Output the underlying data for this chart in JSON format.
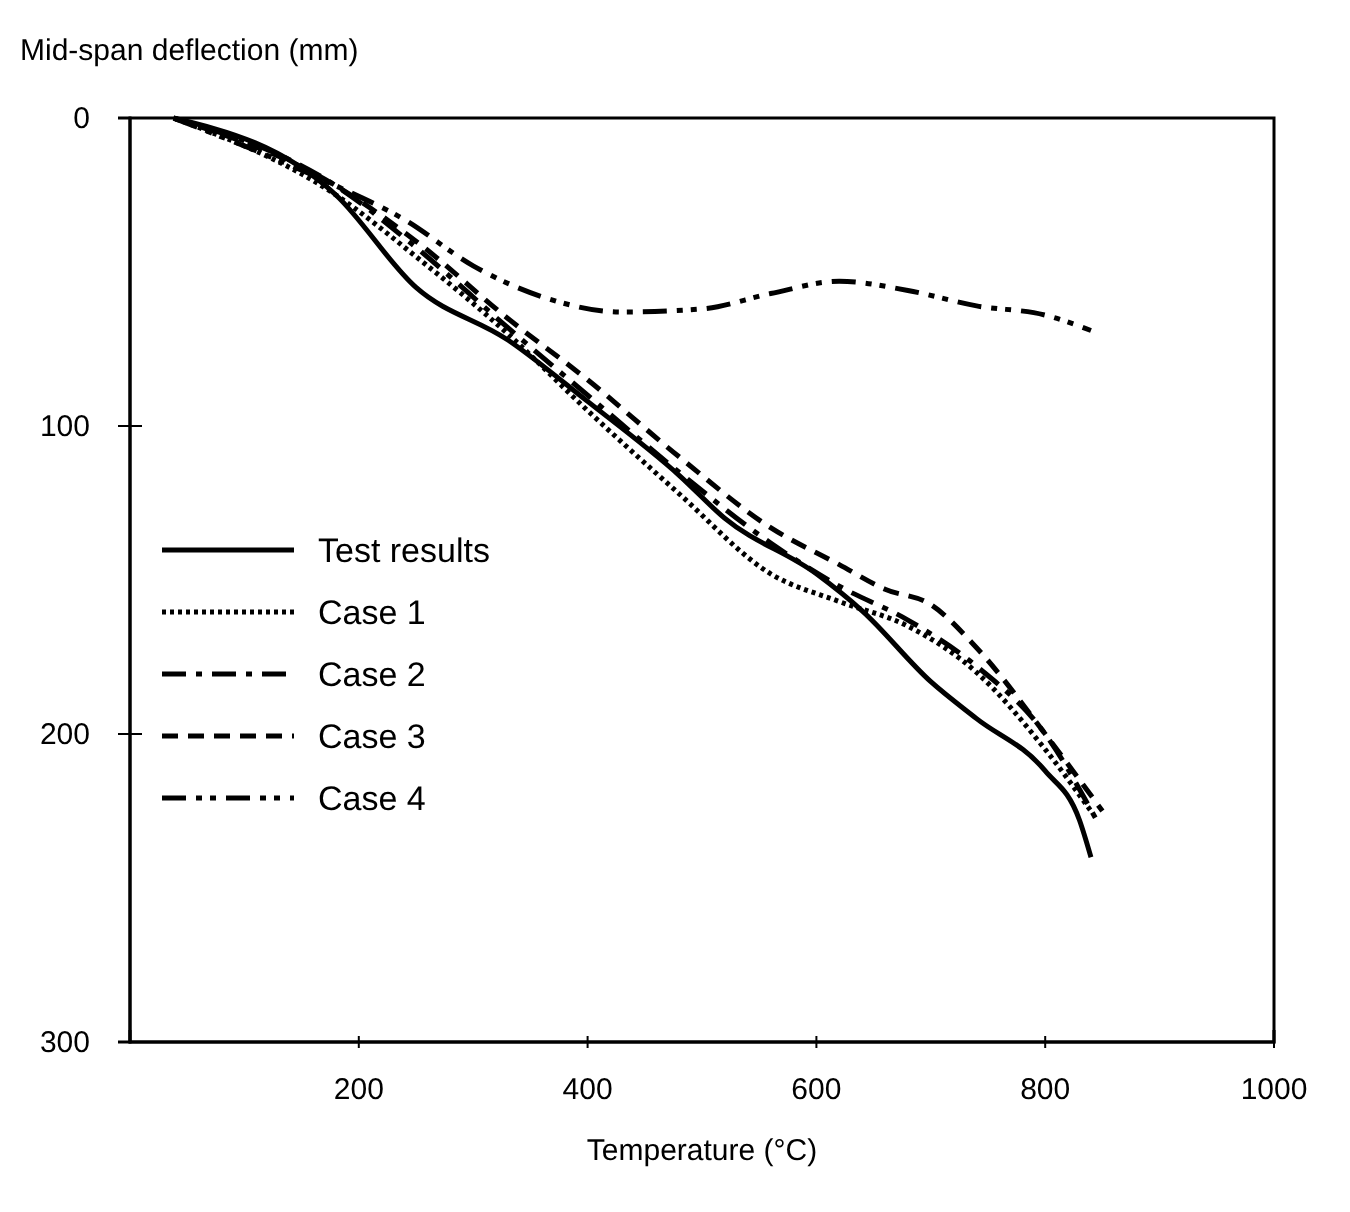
{
  "chart_data": {
    "type": "line",
    "xlabel": "Temperature (°C)",
    "ylabel": "Mid-span deflection (mm)",
    "xlim": [
      0,
      1000
    ],
    "xticks": [
      200,
      400,
      600,
      800,
      1000
    ],
    "ylim": [
      300,
      0
    ],
    "yticks": [
      0,
      100,
      200,
      300
    ],
    "grid": false,
    "legend": "left",
    "marker": "none",
    "series": [
      {
        "name": "Test results",
        "color": "#000000",
        "line_style": "solid",
        "x": [
          38,
          180,
          250,
          330,
          400,
          480,
          520,
          600,
          640,
          700,
          740,
          800,
          830,
          840
        ],
        "values": [
          0,
          25,
          55,
          72,
          92,
          116,
          130,
          148,
          160,
          183,
          195,
          212,
          228,
          240
        ]
      },
      {
        "name": "Case 1",
        "color": "#000000",
        "line_style": "dotted",
        "x": [
          38,
          180,
          250,
          330,
          400,
          480,
          560,
          620,
          680,
          740,
          800,
          840
        ],
        "values": [
          0,
          25,
          45,
          70,
          95,
          122,
          148,
          157,
          165,
          180,
          205,
          225
        ]
      },
      {
        "name": "Case 2",
        "color": "#000000",
        "line_style": "dashdot",
        "x": [
          38,
          180,
          250,
          330,
          400,
          480,
          560,
          620,
          680,
          740,
          800,
          845
        ],
        "values": [
          0,
          22,
          42,
          68,
          90,
          115,
          138,
          152,
          163,
          178,
          200,
          228
        ]
      },
      {
        "name": "Case 3",
        "color": "#000000",
        "line_style": "dashed",
        "x": [
          38,
          180,
          250,
          330,
          400,
          480,
          560,
          620,
          660,
          700,
          740,
          800,
          850
        ],
        "values": [
          0,
          22,
          40,
          65,
          85,
          110,
          133,
          145,
          153,
          158,
          172,
          200,
          225
        ]
      },
      {
        "name": "Case 4",
        "color": "#000000",
        "line_style": "dashdotdot",
        "x": [
          38,
          180,
          240,
          300,
          360,
          430,
          500,
          560,
          620,
          680,
          740,
          800,
          840
        ],
        "values": [
          0,
          22,
          33,
          48,
          58,
          63,
          62,
          57,
          53,
          56,
          61,
          64,
          69
        ]
      }
    ]
  }
}
